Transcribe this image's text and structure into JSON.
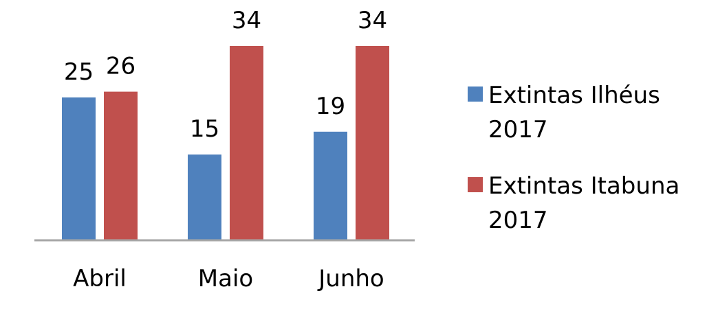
{
  "chart_data": {
    "type": "bar",
    "categories": [
      "Abril",
      "Maio",
      "Junho"
    ],
    "series": [
      {
        "name": "Extintas Ilhéus 2017",
        "values": [
          25,
          15,
          19
        ],
        "color": "#4f81bd"
      },
      {
        "name": "Extintas Itabuna 2017",
        "values": [
          26,
          34,
          34
        ],
        "color": "#c0504d"
      }
    ],
    "legend_lines": [
      [
        "Extintas Ilhéus",
        "2017"
      ],
      [
        "Extintas Itabuna",
        "2017"
      ]
    ],
    "ylim": [
      0,
      40
    ],
    "grid": false,
    "show_y_axis": false,
    "data_labels": true,
    "legend_position": "right",
    "axis_color": "#a6a6a6",
    "title": "",
    "xlabel": "",
    "ylabel": ""
  }
}
